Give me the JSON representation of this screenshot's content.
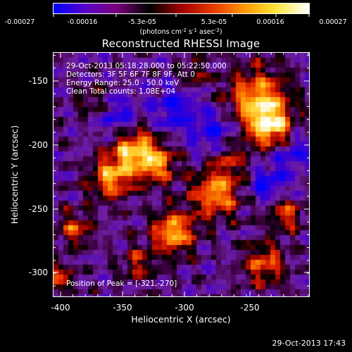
{
  "colorbar": {
    "tick_labels": [
      "-0.00027",
      "-0.00016",
      "-5.3e-05",
      "5.3e-05",
      "0.00016",
      "0.00027"
    ],
    "unit_label": {
      "photons": "(photons cm",
      "exp1": "-2",
      "s": " s",
      "exp2": "-1",
      "asec": " asec",
      "exp3": "-2",
      "close": ")"
    },
    "colors": [
      "#0000ff",
      "#5a00c8",
      "#78007a",
      "#000000",
      "#a00000",
      "#e83a00",
      "#ff9a00",
      "#ffe840",
      "#ffffff"
    ]
  },
  "plot": {
    "title": "Reconstructed RHESSI Image",
    "info_lines": [
      "29-Oct-2013 05:18:28.000 to 05:22:50.000",
      "Detectors: 3F 5F 6F 7F 8F 9F, Att 0",
      "Energy Range: 25.0 - 50.0 keV",
      "Clean      Total counts: 1.08E+04"
    ],
    "peak_text": "Position of Peak = [-321,-270]",
    "xlabel": "Heliocentric X (arcsec)",
    "ylabel": "Heliocentric Y (arcsec)",
    "x_ticks": [
      "-400",
      "-350",
      "-300",
      "-250"
    ],
    "y_ticks": [
      "-150",
      "-200",
      "-250",
      "-300"
    ],
    "xlim": [
      -403,
      -215
    ],
    "ylim": [
      -320,
      -130
    ]
  },
  "timestamp": "29-Oct-2013 17:43"
}
